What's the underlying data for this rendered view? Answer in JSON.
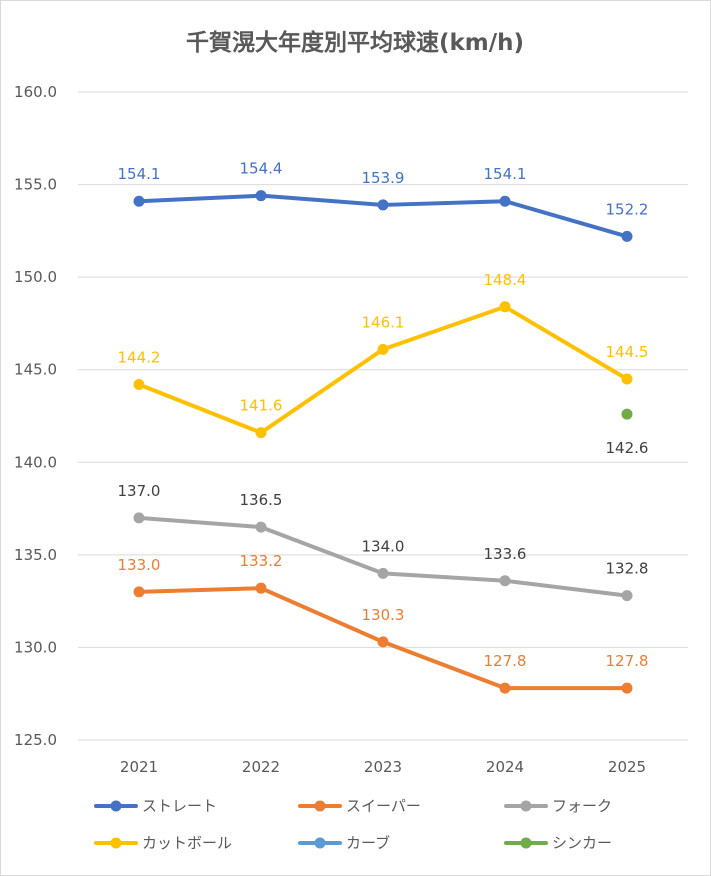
{
  "chart_data": {
    "type": "line",
    "title": "千賀滉大年度別平均球速(km/h)",
    "xlabel": "",
    "ylabel": "",
    "categories": [
      "2021",
      "2022",
      "2023",
      "2024",
      "2025"
    ],
    "ylim": [
      125,
      160
    ],
    "ytick_step": 5,
    "ytick_labels": [
      "125.0",
      "130.0",
      "135.0",
      "140.0",
      "145.0",
      "150.0",
      "155.0",
      "160.0"
    ],
    "grid": true,
    "legend_position": "bottom",
    "series": [
      {
        "name": "ストレート",
        "color": "#4472C4",
        "values": [
          154.1,
          154.4,
          153.9,
          154.1,
          152.2
        ],
        "labels": [
          "154.1",
          "154.4",
          "153.9",
          "154.1",
          "152.2"
        ],
        "label_color": "#4472C4",
        "label_pos": "above"
      },
      {
        "name": "スイーパー",
        "color": "#ED7D31",
        "values": [
          133.0,
          133.2,
          130.3,
          127.8,
          127.8
        ],
        "labels": [
          "133.0",
          "133.2",
          "130.3",
          "127.8",
          "127.8"
        ],
        "label_color": "#ED7D31",
        "label_pos": "above"
      },
      {
        "name": "フォーク",
        "color": "#A5A5A5",
        "values": [
          137.0,
          136.5,
          134.0,
          133.6,
          132.8
        ],
        "labels": [
          "137.0",
          "136.5",
          "134.0",
          "133.6",
          "132.8"
        ],
        "label_color": "#404040",
        "label_pos": "above"
      },
      {
        "name": "カットボール",
        "color": "#FFC000",
        "values": [
          144.2,
          141.6,
          146.1,
          148.4,
          144.5
        ],
        "labels": [
          "144.2",
          "141.6",
          "146.1",
          "148.4",
          "144.5"
        ],
        "label_color": "#FFC000",
        "label_pos": "above"
      },
      {
        "name": "カーブ",
        "color": "#5B9BD5",
        "values": [
          null,
          null,
          null,
          null,
          null
        ],
        "labels": [
          null,
          null,
          null,
          null,
          null
        ],
        "label_color": "#5B9BD5",
        "label_pos": "above"
      },
      {
        "name": "シンカー",
        "color": "#70AD47",
        "values": [
          null,
          null,
          null,
          null,
          142.6
        ],
        "labels": [
          null,
          null,
          null,
          null,
          "142.6"
        ],
        "label_color": "#404040",
        "label_pos": "below"
      }
    ]
  }
}
